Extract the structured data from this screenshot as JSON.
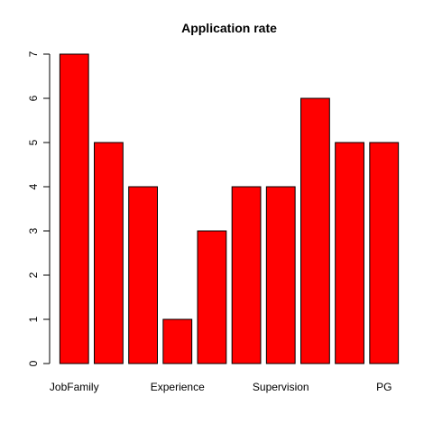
{
  "chart_data": {
    "type": "bar",
    "title": "Application rate",
    "xlabel": "",
    "ylabel": "",
    "categories": [
      "JobFamily",
      "",
      "",
      "Experience",
      "",
      "",
      "Supervision",
      "",
      "",
      "PG"
    ],
    "values": [
      7,
      5,
      4,
      1,
      3,
      4,
      4,
      6,
      5,
      5
    ],
    "ylim": [
      0,
      7
    ],
    "yticks": [
      0,
      1,
      2,
      3,
      4,
      5,
      6,
      7
    ],
    "bar_color": "#ff0000",
    "grid": false,
    "legend": "none"
  }
}
